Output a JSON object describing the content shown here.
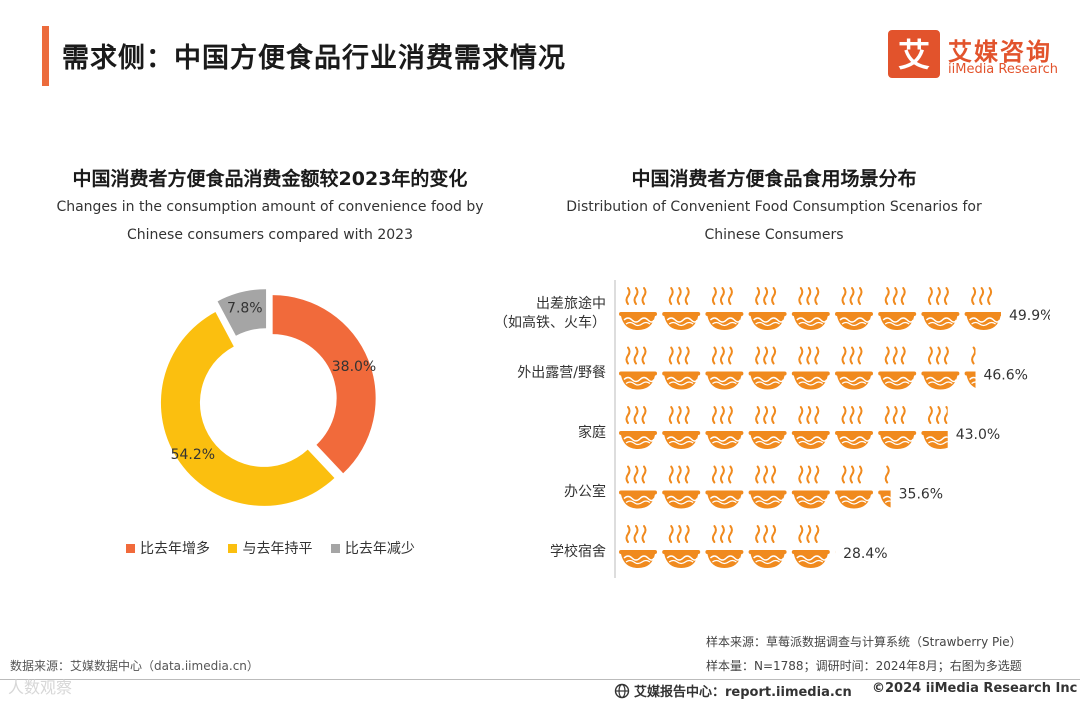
{
  "header": {
    "title": "需求侧：中国方便食品行业消费需求情况",
    "brand_cn": "艾媒咨询",
    "brand_en": "iiMedia Research",
    "logo_char": "艾"
  },
  "colors": {
    "accent": "#ec6b3c",
    "increase": "#f16a3b",
    "same": "#fbbf0f",
    "decrease": "#a5a5a5",
    "bowl": "#f08a1e"
  },
  "chart_data": [
    {
      "type": "pie",
      "title": "中国消费者方便食品消费金额较2023年的变化",
      "subtitle": "Changes in the consumption amount of convenience food by Chinese consumers compared with 2023",
      "slices": [
        {
          "label": "比去年增多",
          "value": 38.0,
          "display": "38.0%"
        },
        {
          "label": "与去年持平",
          "value": 54.2,
          "display": "54.2%"
        },
        {
          "label": "比去年减少",
          "value": 7.8,
          "display": "7.8%"
        }
      ],
      "legend_position": "bottom"
    },
    {
      "type": "bar",
      "title": "中国消费者方便食品食用场景分布",
      "subtitle": "Distribution of Convenient Food Consumption Scenarios for Chinese Consumers",
      "categories": [
        "出差旅途中\n（如高铁、火车）",
        "外出露营/野餐",
        "家庭",
        "办公室",
        "学校宿舍"
      ],
      "values": [
        49.9,
        46.6,
        43.0,
        35.6,
        28.4
      ],
      "labels": [
        "49.9%",
        "46.6%",
        "43.0%",
        "35.6%",
        "28.4%"
      ],
      "unit": "%",
      "xlim": [
        0,
        50
      ]
    }
  ],
  "footer": {
    "sample_source": "样本来源：草莓派数据调查与计算系统（Strawberry Pie）",
    "sample_size": "样本量：N=1788；调研时间：2024年8月；右图为多选题",
    "data_source": "数据来源：艾媒数据中心（data.iimedia.cn）",
    "watermark": "人数观察",
    "report": "艾媒报告中心：report.iimedia.cn",
    "copyright": "©2024  iiMedia Research Inc"
  }
}
